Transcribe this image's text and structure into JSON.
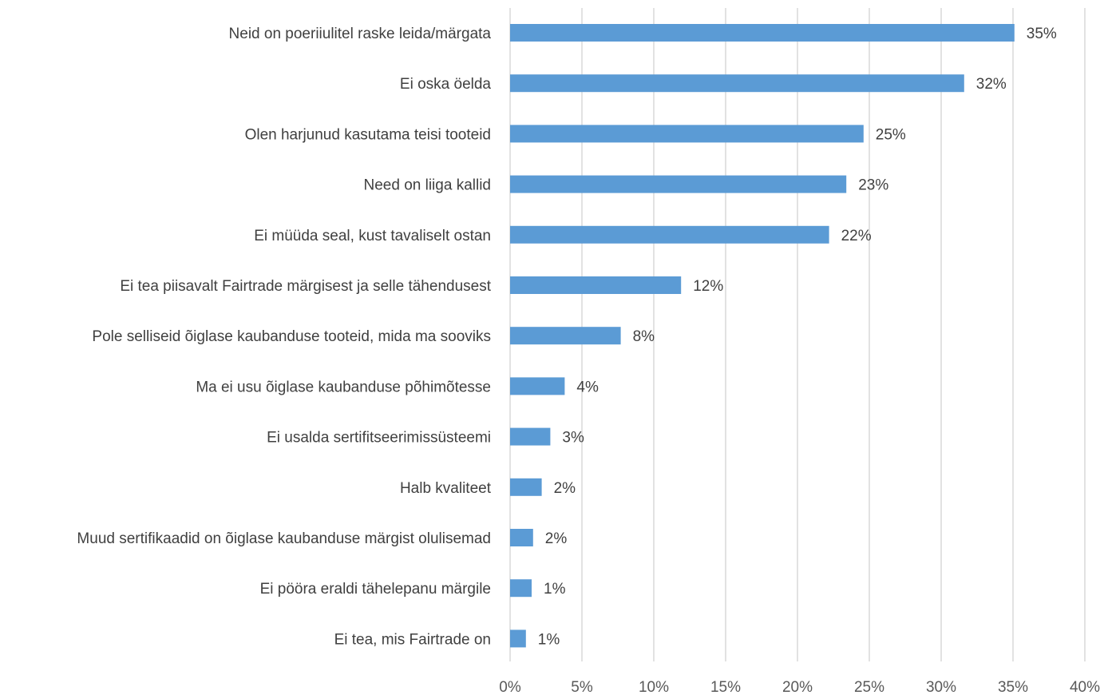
{
  "chart_data": {
    "type": "bar",
    "orientation": "horizontal",
    "categories": [
      "Neid on poeriiulitel raske leida/märgata",
      "Ei oska öelda",
      "Olen harjunud kasutama teisi tooteid",
      "Need on liiga kallid",
      "Ei müüda seal, kust tavaliselt ostan",
      "Ei tea piisavalt Fairtrade märgisest ja selle tähendusest",
      "Pole selliseid õiglase kaubanduse tooteid, mida ma sooviks",
      "Ma ei usu õiglase kaubanduse põhimõtesse",
      "Ei usalda sertifitseerimissüsteemi",
      "Halb kvaliteet",
      "Muud sertifikaadid on õiglase kaubanduse märgist olulisemad",
      "Ei pööra eraldi tähelepanu märgile",
      "Ei tea, mis Fairtrade on"
    ],
    "values": [
      35.1,
      31.6,
      24.6,
      23.4,
      22.2,
      11.9,
      7.7,
      3.8,
      2.8,
      2.2,
      1.6,
      1.5,
      1.1
    ],
    "value_labels": [
      "35%",
      "32%",
      "25%",
      "23%",
      "22%",
      "12%",
      "8%",
      "4%",
      "3%",
      "2%",
      "2%",
      "1%",
      "1%"
    ],
    "xlim": [
      0,
      40
    ],
    "x_ticks": [
      "0%",
      "5%",
      "10%",
      "15%",
      "20%",
      "25%",
      "30%",
      "35%",
      "40%"
    ],
    "grid": "vertical",
    "bar_color": "#5b9bd5",
    "title": "",
    "xlabel": "",
    "ylabel": ""
  }
}
